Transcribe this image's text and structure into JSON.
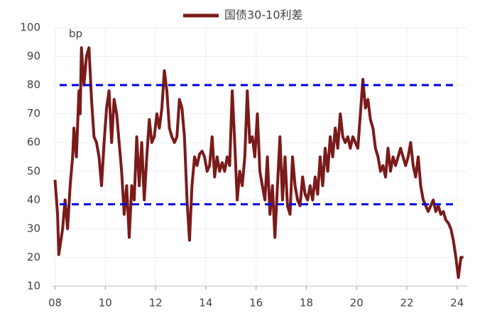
{
  "chart_data": {
    "type": "line",
    "legend": "国债30-10利差",
    "unit_label": "bp",
    "x": [
      8.0,
      8.1,
      8.15,
      8.3,
      8.4,
      8.5,
      8.6,
      8.7,
      8.75,
      8.85,
      8.95,
      9.0,
      9.05,
      9.15,
      9.25,
      9.35,
      9.45,
      9.55,
      9.65,
      9.75,
      9.85,
      9.95,
      10.05,
      10.15,
      10.25,
      10.35,
      10.45,
      10.55,
      10.65,
      10.75,
      10.85,
      10.95,
      11.05,
      11.15,
      11.25,
      11.35,
      11.45,
      11.55,
      11.65,
      11.75,
      11.85,
      11.95,
      12.05,
      12.15,
      12.25,
      12.35,
      12.45,
      12.55,
      12.65,
      12.75,
      12.85,
      12.95,
      13.05,
      13.15,
      13.25,
      13.35,
      13.45,
      13.55,
      13.65,
      13.75,
      13.85,
      13.95,
      14.05,
      14.15,
      14.25,
      14.35,
      14.45,
      14.55,
      14.65,
      14.75,
      14.85,
      14.95,
      15.05,
      15.15,
      15.25,
      15.35,
      15.45,
      15.55,
      15.65,
      15.75,
      15.85,
      15.95,
      16.05,
      16.15,
      16.25,
      16.35,
      16.45,
      16.55,
      16.65,
      16.75,
      16.85,
      16.95,
      17.05,
      17.15,
      17.25,
      17.35,
      17.45,
      17.55,
      17.65,
      17.75,
      17.85,
      17.95,
      18.05,
      18.15,
      18.25,
      18.35,
      18.45,
      18.55,
      18.65,
      18.75,
      18.85,
      18.95,
      19.05,
      19.15,
      19.25,
      19.35,
      19.45,
      19.55,
      19.65,
      19.75,
      19.85,
      19.95,
      20.05,
      20.15,
      20.25,
      20.35,
      20.45,
      20.55,
      20.65,
      20.75,
      20.85,
      20.95,
      21.05,
      21.15,
      21.25,
      21.35,
      21.45,
      21.55,
      21.65,
      21.75,
      21.85,
      21.95,
      22.05,
      22.15,
      22.25,
      22.35,
      22.45,
      22.55,
      22.65,
      22.75,
      22.85,
      22.95,
      23.05,
      23.15,
      23.25,
      23.35,
      23.45,
      23.55,
      23.65,
      23.75,
      23.85,
      23.95,
      24.05,
      24.15,
      24.25
    ],
    "series": [
      {
        "name": "国债30-10利差",
        "color": "#7b1a1a",
        "values": [
          47,
          35,
          21,
          30,
          40,
          30,
          45,
          55,
          65,
          55,
          78,
          70,
          93,
          80,
          90,
          93,
          75,
          62,
          60,
          55,
          45,
          60,
          72,
          78,
          60,
          75,
          70,
          60,
          50,
          35,
          45,
          27,
          45,
          40,
          62,
          45,
          60,
          40,
          55,
          68,
          60,
          62,
          70,
          65,
          72,
          85,
          78,
          65,
          62,
          60,
          62,
          75,
          72,
          62,
          40,
          26,
          45,
          55,
          52,
          56,
          57,
          55,
          50,
          52,
          62,
          48,
          55,
          50,
          53,
          50,
          55,
          52,
          78,
          60,
          40,
          50,
          45,
          55,
          78,
          60,
          62,
          55,
          70,
          50,
          45,
          40,
          55,
          35,
          45,
          27,
          45,
          62,
          40,
          55,
          38,
          35,
          55,
          45,
          40,
          38,
          48,
          42,
          40,
          45,
          40,
          48,
          42,
          55,
          45,
          58,
          50,
          62,
          55,
          65,
          58,
          70,
          62,
          60,
          62,
          58,
          62,
          60,
          58,
          70,
          82,
          72,
          75,
          68,
          65,
          58,
          55,
          50,
          52,
          48,
          58,
          50,
          55,
          52,
          55,
          58,
          55,
          52,
          55,
          60,
          52,
          48,
          55,
          45,
          40,
          38,
          36,
          38,
          40,
          36,
          38,
          35,
          36,
          33,
          32,
          30,
          26,
          20,
          13,
          20,
          20
        ]
      }
    ],
    "reference_lines": [
      80,
      38.5
    ],
    "reference_color": "#0000dd",
    "xlim": [
      7.9,
      24.4
    ],
    "xticks": [
      {
        "value": 8,
        "label": "08"
      },
      10,
      12,
      14,
      16,
      18,
      20,
      22,
      24
    ],
    "ylim": [
      10,
      100
    ],
    "yticks": [
      10,
      20,
      30,
      40,
      50,
      60,
      70,
      80,
      90,
      100
    ],
    "grid": true
  }
}
